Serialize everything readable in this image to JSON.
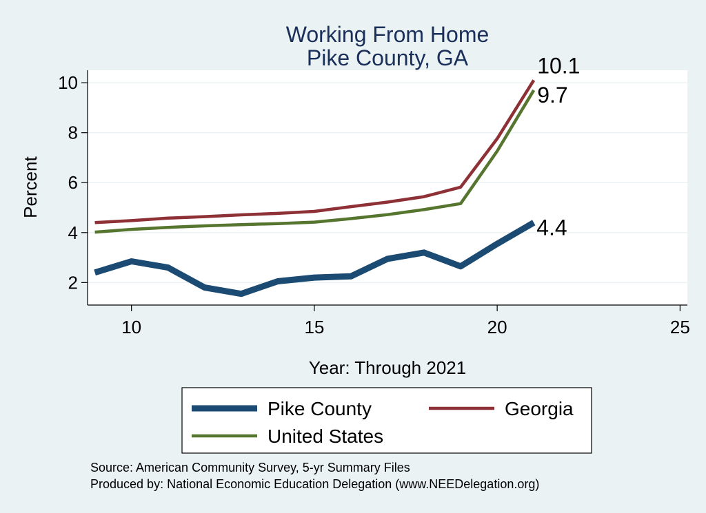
{
  "chart_data": {
    "type": "line",
    "title": "Working From Home",
    "subtitle": "Pike County, GA",
    "xlabel": "Year: Through 2021",
    "ylabel": "Percent",
    "xlim": [
      8.8,
      25.2
    ],
    "ylim": [
      1.1,
      10.5
    ],
    "xticks": [
      10,
      15,
      20,
      25
    ],
    "yticks": [
      2,
      4,
      6,
      8,
      10
    ],
    "grid": true,
    "legend": "bottom",
    "series": [
      {
        "name": "Pike County",
        "color": "#1b4a72",
        "x": [
          9,
          10,
          11,
          12,
          13,
          14,
          15,
          16,
          17,
          18,
          19,
          20,
          21
        ],
        "values": [
          2.4,
          2.85,
          2.6,
          1.8,
          1.55,
          2.05,
          2.2,
          2.25,
          2.95,
          3.2,
          2.65,
          3.55,
          4.4
        ],
        "end_label": "4.4"
      },
      {
        "name": "Georgia",
        "color": "#8e3137",
        "x": [
          9,
          10,
          11,
          12,
          13,
          14,
          15,
          16,
          17,
          18,
          19,
          20,
          21
        ],
        "values": [
          4.4,
          4.48,
          4.58,
          4.64,
          4.71,
          4.77,
          4.85,
          5.04,
          5.22,
          5.44,
          5.82,
          7.76,
          10.1
        ],
        "end_label": "10.1"
      },
      {
        "name": "United States",
        "color": "#56752f",
        "x": [
          9,
          10,
          11,
          12,
          13,
          14,
          15,
          16,
          17,
          18,
          19,
          20,
          21
        ],
        "values": [
          4.02,
          4.13,
          4.21,
          4.27,
          4.32,
          4.36,
          4.42,
          4.56,
          4.72,
          4.92,
          5.16,
          7.26,
          9.7
        ],
        "end_label": "9.7"
      }
    ]
  },
  "source_note": {
    "line1": "Source: American Community Survey, 5-yr Summary Files",
    "line2": "Produced by: National Economic Education Delegation (www.NEEDelegation.org)"
  }
}
